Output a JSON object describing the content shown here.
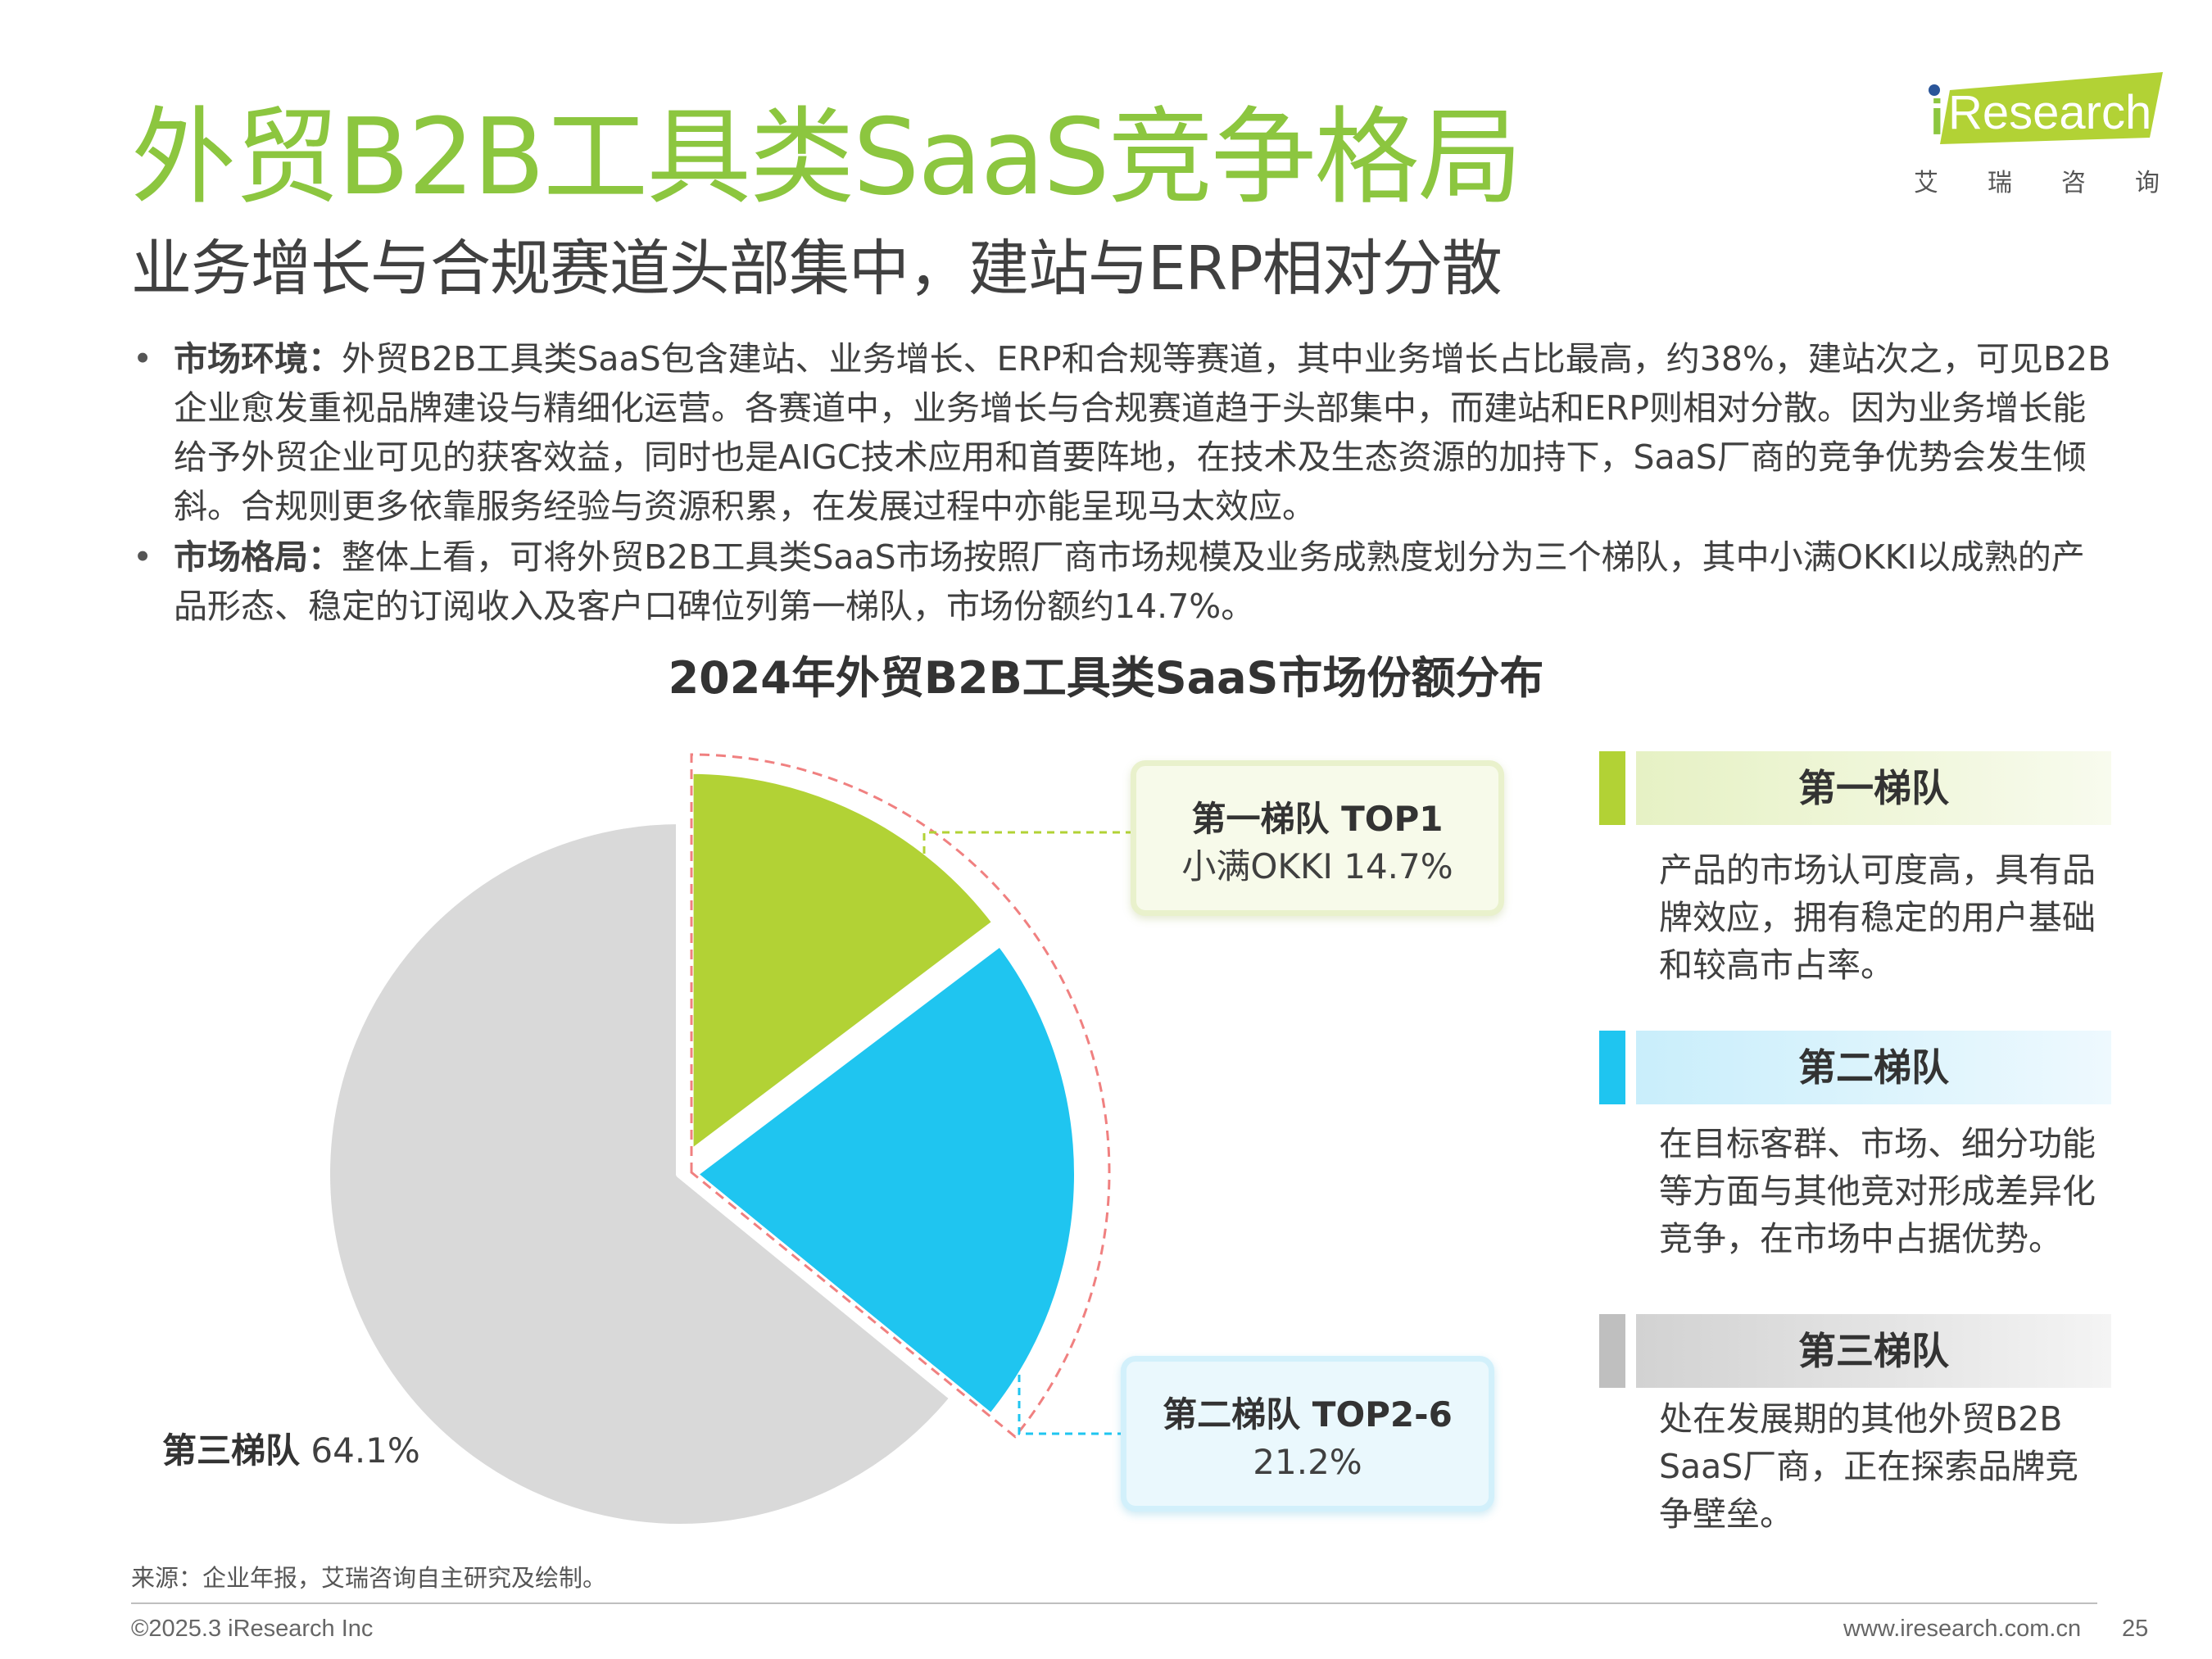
{
  "header": {
    "title": "外贸B2B工具类SaaS竞争格局",
    "subtitle": "业务增长与合规赛道头部集中，建站与ERP相对分散"
  },
  "logo": {
    "brand": "Research",
    "brand_prefix": "i",
    "cn_chars": [
      "艾",
      "瑞",
      "咨",
      "询"
    ]
  },
  "bullets": [
    {
      "label": "市场环境：",
      "text": "外贸B2B工具类SaaS包含建站、业务增长、ERP和合规等赛道，其中业务增长占比最高，约38%，建站次之，可见B2B企业愈发重视品牌建设与精细化运营。各赛道中，业务增长与合规赛道趋于头部集中，而建站和ERP则相对分散。因为业务增长能给予外贸企业可见的获客效益，同时也是AIGC技术应用和首要阵地，在技术及生态资源的加持下，SaaS厂商的竞争优势会发生倾斜。合规则更多依靠服务经验与资源积累，在发展过程中亦能呈现马太效应。"
    },
    {
      "label": "市场格局：",
      "text": "整体上看，可将外贸B2B工具类SaaS市场按照厂商市场规模及业务成熟度划分为三个梯队，其中小满OKKI以成熟的产品形态、稳定的订阅收入及客户口碑位列第一梯队，市场份额约14.7%。"
    }
  ],
  "chart_data": {
    "type": "pie",
    "title": "2024年外贸B2B工具类SaaS市场份额分布",
    "slices": [
      {
        "name": "第一梯队 TOP1",
        "detail": "小满OKKI 14.7%",
        "value": 14.7,
        "color": "#b2d235"
      },
      {
        "name": "第二梯队 TOP2-6",
        "detail": "21.2%",
        "value": 21.2,
        "color": "#1fc5f0"
      },
      {
        "name": "第三梯队",
        "detail": "64.1%",
        "value": 64.1,
        "color": "#d9d9d9"
      }
    ]
  },
  "tiers": [
    {
      "title": "第一梯队",
      "color": "#b2d235",
      "desc": "产品的市场认可度高，具有品牌效应，拥有稳定的用户基础和较高市占率。"
    },
    {
      "title": "第二梯队",
      "color": "#1fc5f0",
      "desc": "在目标客群、市场、细分功能等方面与其他竞对形成差异化竞争，在市场中占据优势。"
    },
    {
      "title": "第三梯队",
      "color": "#bfbfbf",
      "desc": "处在发展期的其他外贸B2B SaaS厂商，正在探索品牌竞争壁垒。"
    }
  ],
  "footer": {
    "source": "来源：企业年报，艾瑞咨询自主研究及绘制。",
    "copyright": "©2025.3 iResearch Inc",
    "website": "www.iresearch.com.cn",
    "page": "25"
  }
}
